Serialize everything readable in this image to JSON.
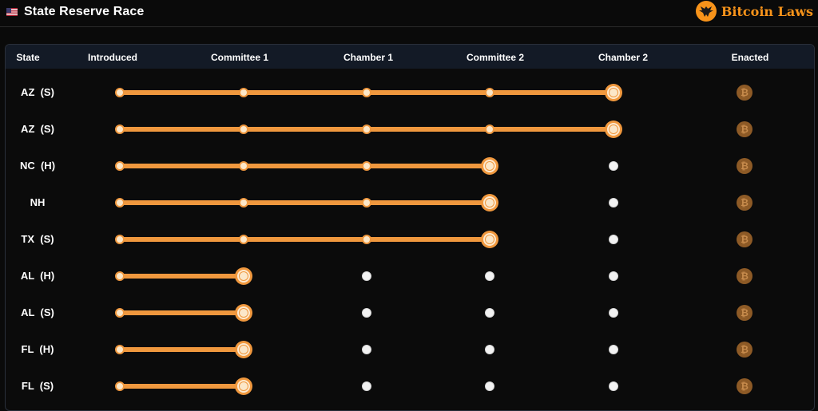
{
  "header": {
    "title": "State Reserve Race",
    "flag_icon": "us-flag-icon",
    "brand_logo_icon": "eagle-logo-icon",
    "brand_name": "Bitcoin Laws",
    "brand_color": "#f7931a"
  },
  "columns": [
    "State",
    "Introduced",
    "Committee 1",
    "Chamber 1",
    "Committee 2",
    "Chamber 2",
    "Enacted"
  ],
  "colors": {
    "progress": "#f0983e",
    "pending_dot": "#f2f2f2",
    "enacted_icon": "#8d5a26",
    "header_bg": "#131a26"
  },
  "enacted_icon": "bitcoin-icon",
  "enacted_glyph": "₿",
  "rows": [
    {
      "state": "AZ  (S)",
      "stage": 5
    },
    {
      "state": "AZ  (S)",
      "stage": 5
    },
    {
      "state": "NC  (H)",
      "stage": 4
    },
    {
      "state": "NH",
      "stage": 4
    },
    {
      "state": "TX  (S)",
      "stage": 4
    },
    {
      "state": "AL  (H)",
      "stage": 2
    },
    {
      "state": "AL  (S)",
      "stage": 2
    },
    {
      "state": "FL  (H)",
      "stage": 2
    },
    {
      "state": "FL  (S)",
      "stage": 2
    }
  ]
}
